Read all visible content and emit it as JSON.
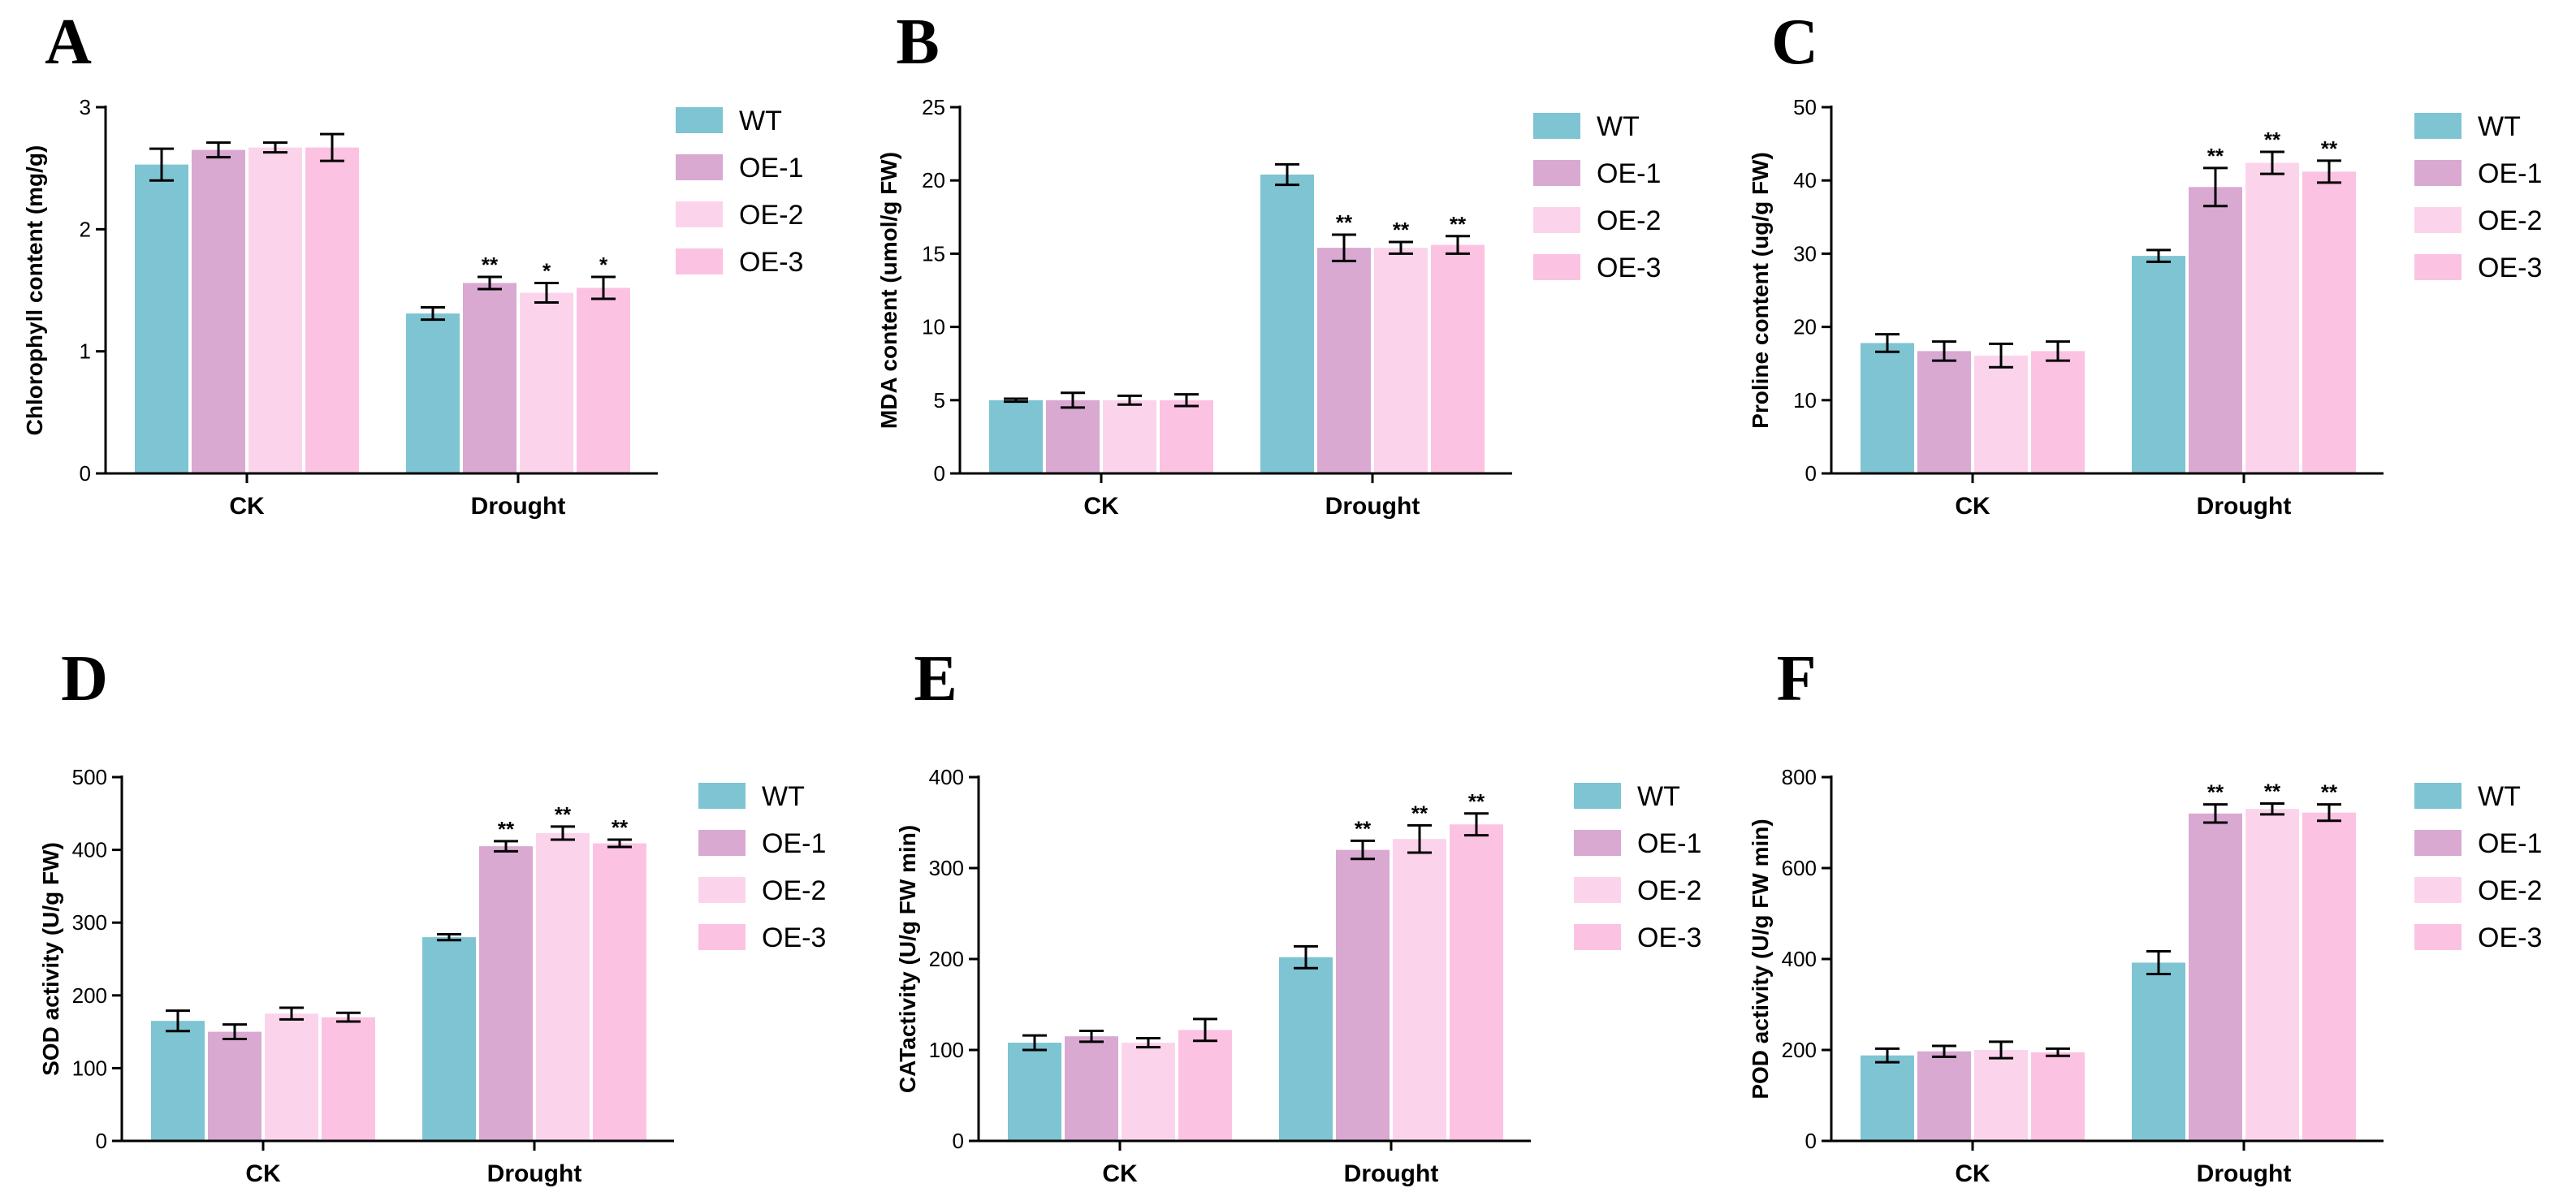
{
  "figure_title": "",
  "chart_data": [
    {
      "panel": "A",
      "type": "bar",
      "categories": [
        "CK",
        "Drought"
      ],
      "ylabel": "Chlorophyll content (mg/g)",
      "ylim": [
        0,
        3
      ],
      "yticks": [
        0,
        1,
        2,
        3
      ],
      "series": [
        {
          "name": "WT",
          "color": "#7ec4d2",
          "values": [
            2.53,
            1.31
          ],
          "errors": [
            0.13,
            0.05
          ],
          "sig": [
            "",
            ""
          ]
        },
        {
          "name": "OE-1",
          "color": "#d9a9d2",
          "values": [
            2.65,
            1.56
          ],
          "errors": [
            0.06,
            0.05
          ],
          "sig": [
            "",
            "**"
          ]
        },
        {
          "name": "OE-2",
          "color": "#fbd4ec",
          "values": [
            2.67,
            1.48
          ],
          "errors": [
            0.04,
            0.08
          ],
          "sig": [
            "",
            "*"
          ]
        },
        {
          "name": "OE-3",
          "color": "#fcc2e2",
          "values": [
            2.67,
            1.52
          ],
          "errors": [
            0.11,
            0.09
          ],
          "sig": [
            "",
            "*"
          ]
        }
      ]
    },
    {
      "panel": "B",
      "type": "bar",
      "categories": [
        "CK",
        "Drought"
      ],
      "ylabel": "MDA content (umol/g FW)",
      "ylim": [
        0,
        25
      ],
      "yticks": [
        0,
        5,
        10,
        15,
        20,
        25
      ],
      "series": [
        {
          "name": "WT",
          "color": "#7ec4d2",
          "values": [
            5.0,
            20.4
          ],
          "errors": [
            0.1,
            0.7
          ],
          "sig": [
            "",
            ""
          ]
        },
        {
          "name": "OE-1",
          "color": "#d9a9d2",
          "values": [
            5.0,
            15.4
          ],
          "errors": [
            0.5,
            0.9
          ],
          "sig": [
            "",
            "**"
          ]
        },
        {
          "name": "OE-2",
          "color": "#fbd4ec",
          "values": [
            5.0,
            15.4
          ],
          "errors": [
            0.3,
            0.4
          ],
          "sig": [
            "",
            "**"
          ]
        },
        {
          "name": "OE-3",
          "color": "#fcc2e2",
          "values": [
            5.0,
            15.6
          ],
          "errors": [
            0.4,
            0.6
          ],
          "sig": [
            "",
            "**"
          ]
        }
      ]
    },
    {
      "panel": "C",
      "type": "bar",
      "categories": [
        "CK",
        "Drought"
      ],
      "ylabel": "Proline content (ug/g FW)",
      "ylim": [
        0,
        50
      ],
      "yticks": [
        0,
        10,
        20,
        30,
        40,
        50
      ],
      "series": [
        {
          "name": "WT",
          "color": "#7ec4d2",
          "values": [
            17.8,
            29.7
          ],
          "errors": [
            1.2,
            0.8
          ],
          "sig": [
            "",
            ""
          ]
        },
        {
          "name": "OE-1",
          "color": "#d9a9d2",
          "values": [
            16.7,
            39.1
          ],
          "errors": [
            1.3,
            2.6
          ],
          "sig": [
            "",
            "**"
          ]
        },
        {
          "name": "OE-2",
          "color": "#fbd4ec",
          "values": [
            16.1,
            42.4
          ],
          "errors": [
            1.6,
            1.5
          ],
          "sig": [
            "",
            "**"
          ]
        },
        {
          "name": "OE-3",
          "color": "#fcc2e2",
          "values": [
            16.7,
            41.2
          ],
          "errors": [
            1.3,
            1.5
          ],
          "sig": [
            "",
            "**"
          ]
        }
      ]
    },
    {
      "panel": "D",
      "type": "bar",
      "categories": [
        "CK",
        "Drought"
      ],
      "ylabel": "SOD activity (U/g FW)",
      "ylim": [
        0,
        500
      ],
      "yticks": [
        0,
        100,
        200,
        300,
        400,
        500
      ],
      "series": [
        {
          "name": "WT",
          "color": "#7ec4d2",
          "values": [
            165,
            280
          ],
          "errors": [
            14,
            4
          ],
          "sig": [
            "",
            ""
          ]
        },
        {
          "name": "OE-1",
          "color": "#d9a9d2",
          "values": [
            150,
            405
          ],
          "errors": [
            10,
            7
          ],
          "sig": [
            "",
            "**"
          ]
        },
        {
          "name": "OE-2",
          "color": "#fbd4ec",
          "values": [
            175,
            423
          ],
          "errors": [
            8,
            9
          ],
          "sig": [
            "",
            "**"
          ]
        },
        {
          "name": "OE-3",
          "color": "#fcc2e2",
          "values": [
            170,
            409
          ],
          "errors": [
            6,
            5
          ],
          "sig": [
            "",
            "**"
          ]
        }
      ]
    },
    {
      "panel": "E",
      "type": "bar",
      "categories": [
        "CK",
        "Drought"
      ],
      "ylabel": "CATactivity (U/g FW min)",
      "ylim": [
        0,
        400
      ],
      "yticks": [
        0,
        100,
        200,
        300,
        400
      ],
      "series": [
        {
          "name": "WT",
          "color": "#7ec4d2",
          "values": [
            108,
            202
          ],
          "errors": [
            8,
            12
          ],
          "sig": [
            "",
            ""
          ]
        },
        {
          "name": "OE-1",
          "color": "#d9a9d2",
          "values": [
            115,
            320
          ],
          "errors": [
            6,
            10
          ],
          "sig": [
            "",
            "**"
          ]
        },
        {
          "name": "OE-2",
          "color": "#fbd4ec",
          "values": [
            108,
            332
          ],
          "errors": [
            5,
            15
          ],
          "sig": [
            "",
            "**"
          ]
        },
        {
          "name": "OE-3",
          "color": "#fcc2e2",
          "values": [
            122,
            348
          ],
          "errors": [
            12,
            12
          ],
          "sig": [
            "",
            "**"
          ]
        }
      ]
    },
    {
      "panel": "F",
      "type": "bar",
      "categories": [
        "CK",
        "Drought"
      ],
      "ylabel": "POD activity (U/g FW min)",
      "ylim": [
        0,
        800
      ],
      "yticks": [
        0,
        200,
        400,
        600,
        800
      ],
      "series": [
        {
          "name": "WT",
          "color": "#7ec4d2",
          "values": [
            188,
            392
          ],
          "errors": [
            15,
            25
          ],
          "sig": [
            "",
            ""
          ]
        },
        {
          "name": "OE-1",
          "color": "#d9a9d2",
          "values": [
            197,
            720
          ],
          "errors": [
            12,
            20
          ],
          "sig": [
            "",
            "**"
          ]
        },
        {
          "name": "OE-2",
          "color": "#fbd4ec",
          "values": [
            200,
            730
          ],
          "errors": [
            18,
            12
          ],
          "sig": [
            "",
            "**"
          ]
        },
        {
          "name": "OE-3",
          "color": "#fcc2e2",
          "values": [
            195,
            722
          ],
          "errors": [
            8,
            18
          ],
          "sig": [
            "",
            "**"
          ]
        }
      ]
    }
  ]
}
